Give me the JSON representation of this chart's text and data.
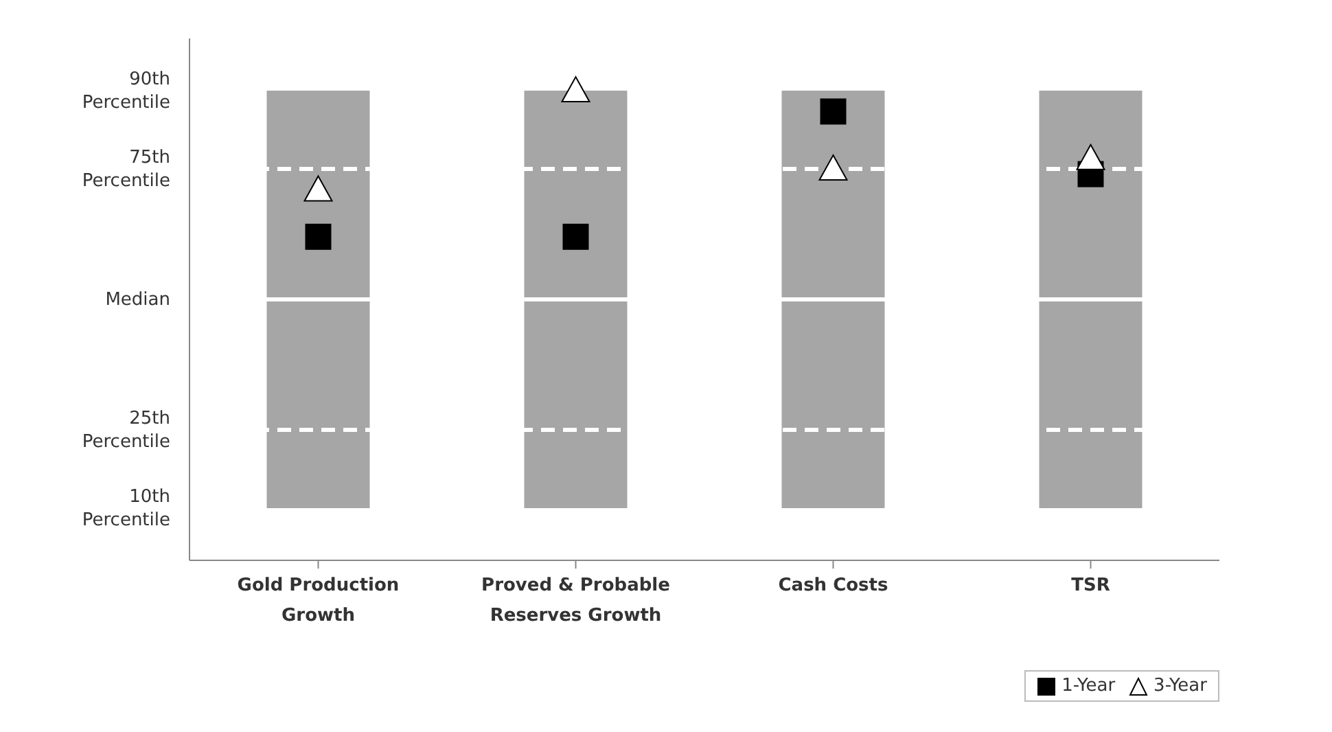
{
  "chart_data": {
    "type": "bar",
    "categories": [
      "Gold Production Growth",
      "Proved & Probable Reserves Growth",
      "Cash Costs",
      "TSR"
    ],
    "series": [
      {
        "color": "#a6a6a6",
        "base": [
          10,
          10,
          10,
          10
        ],
        "values": [
          80,
          80,
          80,
          80
        ]
      },
      {
        "type": "scatter",
        "name": "1-Year",
        "color": "#000000",
        "marker": "square",
        "values": [
          62,
          62,
          86,
          74
        ]
      },
      {
        "type": "scatter",
        "name": "3-Year",
        "color": "#ffffff",
        "marker": "triangle",
        "values": [
          71,
          90,
          75,
          77
        ]
      }
    ],
    "ylim": [
      0,
      100
    ],
    "yticks": [
      {
        "value": 10,
        "label": "10th Percentile"
      },
      {
        "value": 25,
        "label": "25th Percentile"
      },
      {
        "value": 50,
        "label": "Median"
      },
      {
        "value": 75,
        "label": "75th Percentile"
      },
      {
        "value": 90,
        "label": "90th Percentile"
      }
    ],
    "ref_lines": [
      {
        "axis": "y",
        "value": 25,
        "color": "#ffffff",
        "line_style": "dashed"
      },
      {
        "axis": "y",
        "value": 50,
        "color": "#ffffff",
        "line_style": "solid"
      },
      {
        "axis": "y",
        "value": 75,
        "color": "#ffffff",
        "line_style": "dashed"
      }
    ],
    "grid": false,
    "legend": "bottom right"
  }
}
